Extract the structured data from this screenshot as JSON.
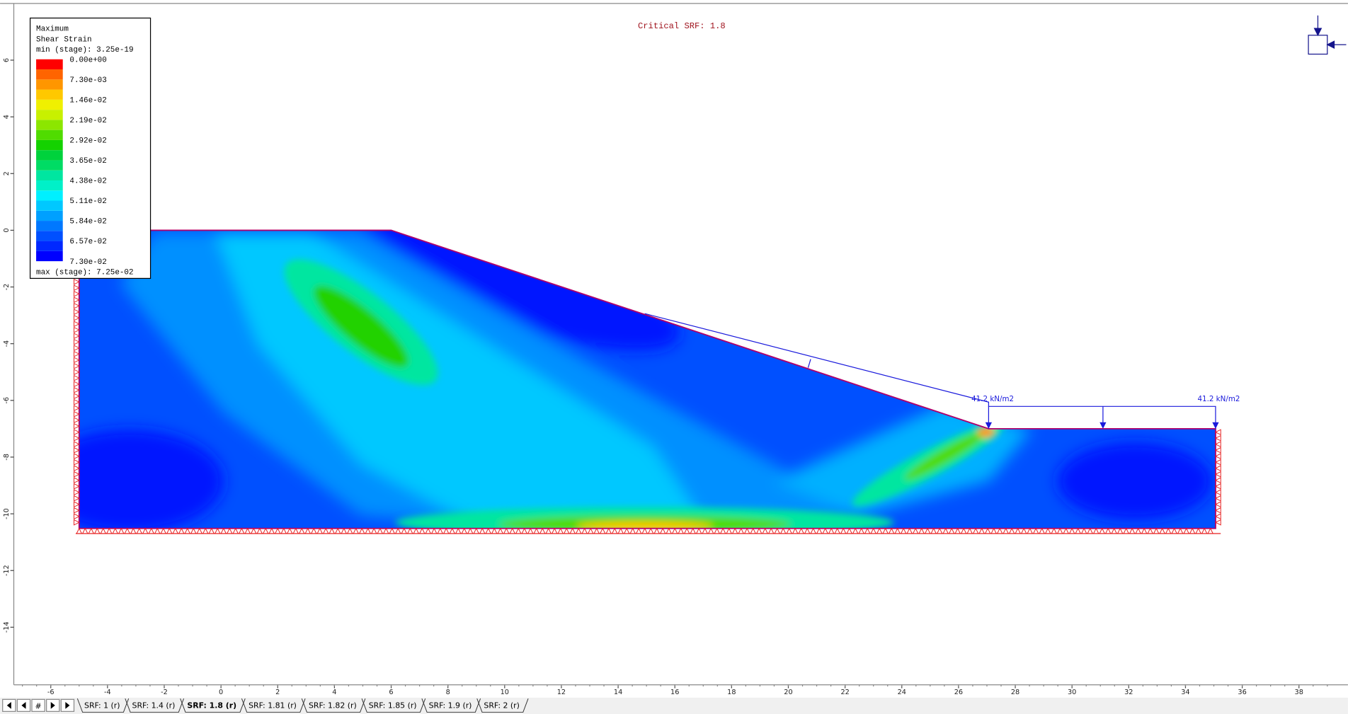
{
  "annotation": "Critical SRF: 1.8",
  "legend": {
    "title": [
      "Maximum",
      "Shear Strain"
    ],
    "min": "min (stage): 3.25e-19",
    "max": "max (stage): 7.25e-02",
    "labels": [
      "0.00e+00",
      "7.30e-03",
      "1.46e-02",
      "2.19e-02",
      "2.92e-02",
      "3.65e-02",
      "4.38e-02",
      "5.11e-02",
      "5.84e-02",
      "6.57e-02",
      "7.30e-02"
    ],
    "colors": [
      "#0000ff",
      "#0028ff",
      "#0050ff",
      "#0078ff",
      "#00a0ff",
      "#00c8ff",
      "#00f0ff",
      "#00f0c8",
      "#00e6a0",
      "#00dc64",
      "#00d23c",
      "#14d200",
      "#50dc00",
      "#8ce600",
      "#c8f000",
      "#f0f000",
      "#ffc800",
      "#ff9600",
      "#ff6400",
      "#ff0000"
    ]
  },
  "x_axis": {
    "ticks": [
      -6,
      -4,
      -2,
      0,
      2,
      4,
      6,
      8,
      10,
      12,
      14,
      16,
      18,
      20,
      22,
      24,
      26,
      28,
      30,
      32,
      34,
      36,
      38
    ]
  },
  "y_axis": {
    "ticks": [
      6,
      4,
      2,
      0,
      -2,
      -4,
      -6,
      -8,
      -10,
      -12,
      -14
    ]
  },
  "loads": [
    "41.2 kN/m2",
    "41.2 kN/m2"
  ],
  "tabs": {
    "nav": [
      "#"
    ],
    "items": [
      "SRF: 1 (r)",
      "SRF: 1.4 (r)",
      "SRF: 1.8 (r)",
      "SRF: 1.81 (r)",
      "SRF: 1.82 (r)",
      "SRF: 1.85 (r)",
      "SRF: 1.9 (r)",
      "SRF: 2 (r)"
    ],
    "active": 2
  }
}
